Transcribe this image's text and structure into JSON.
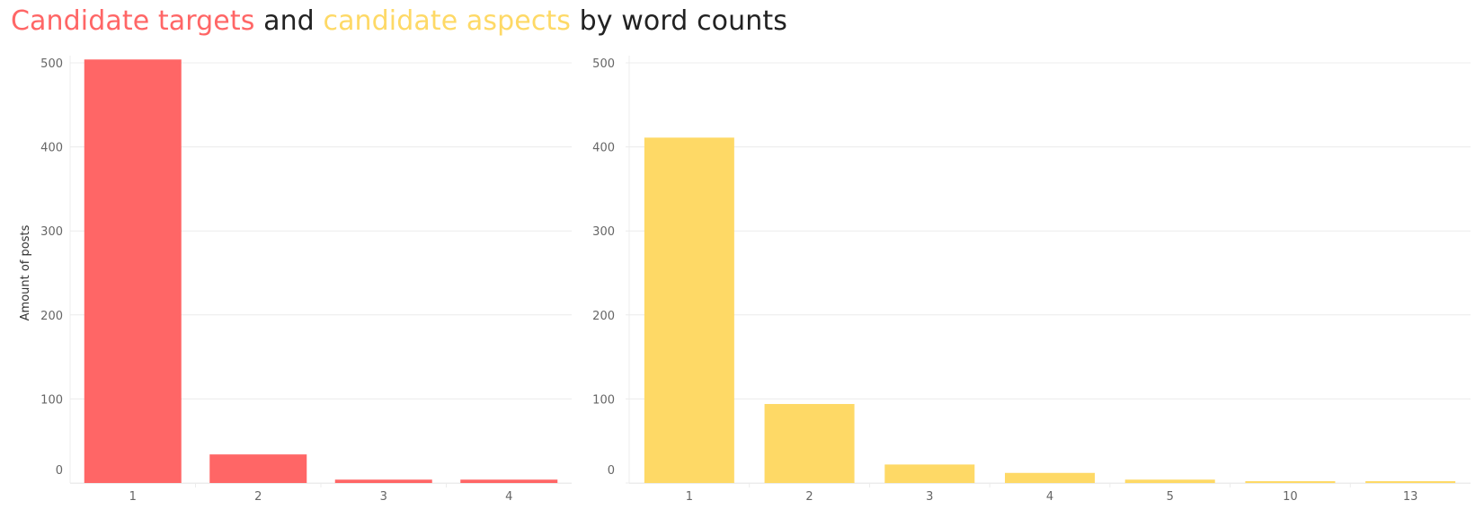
{
  "title": {
    "part1": "Candidate targets",
    "part2": " and ",
    "part3": "candidate aspects",
    "part4": " by word counts"
  },
  "colors": {
    "targets": "#ff6666",
    "aspects": "#fed966",
    "text": "#222222",
    "grid": "#ececec",
    "tick": "#666666"
  },
  "chart_data": [
    {
      "type": "bar",
      "name": "Candidate targets",
      "categories": [
        "1",
        "2",
        "3",
        "4"
      ],
      "values": [
        504,
        34,
        4,
        4
      ],
      "ylabel": "Amount of posts",
      "ylim": [
        0,
        505
      ],
      "yticks": [
        0,
        100,
        200,
        300,
        400,
        500
      ],
      "grid": true
    },
    {
      "type": "bar",
      "name": "Candidate aspects",
      "categories": [
        "1",
        "2",
        "3",
        "4",
        "5",
        "10",
        "13"
      ],
      "values": [
        411,
        94,
        22,
        12,
        4,
        1,
        1
      ],
      "ylabel": "",
      "ylim": [
        0,
        505
      ],
      "yticks": [
        0,
        100,
        200,
        300,
        400,
        500
      ],
      "grid": true
    }
  ]
}
